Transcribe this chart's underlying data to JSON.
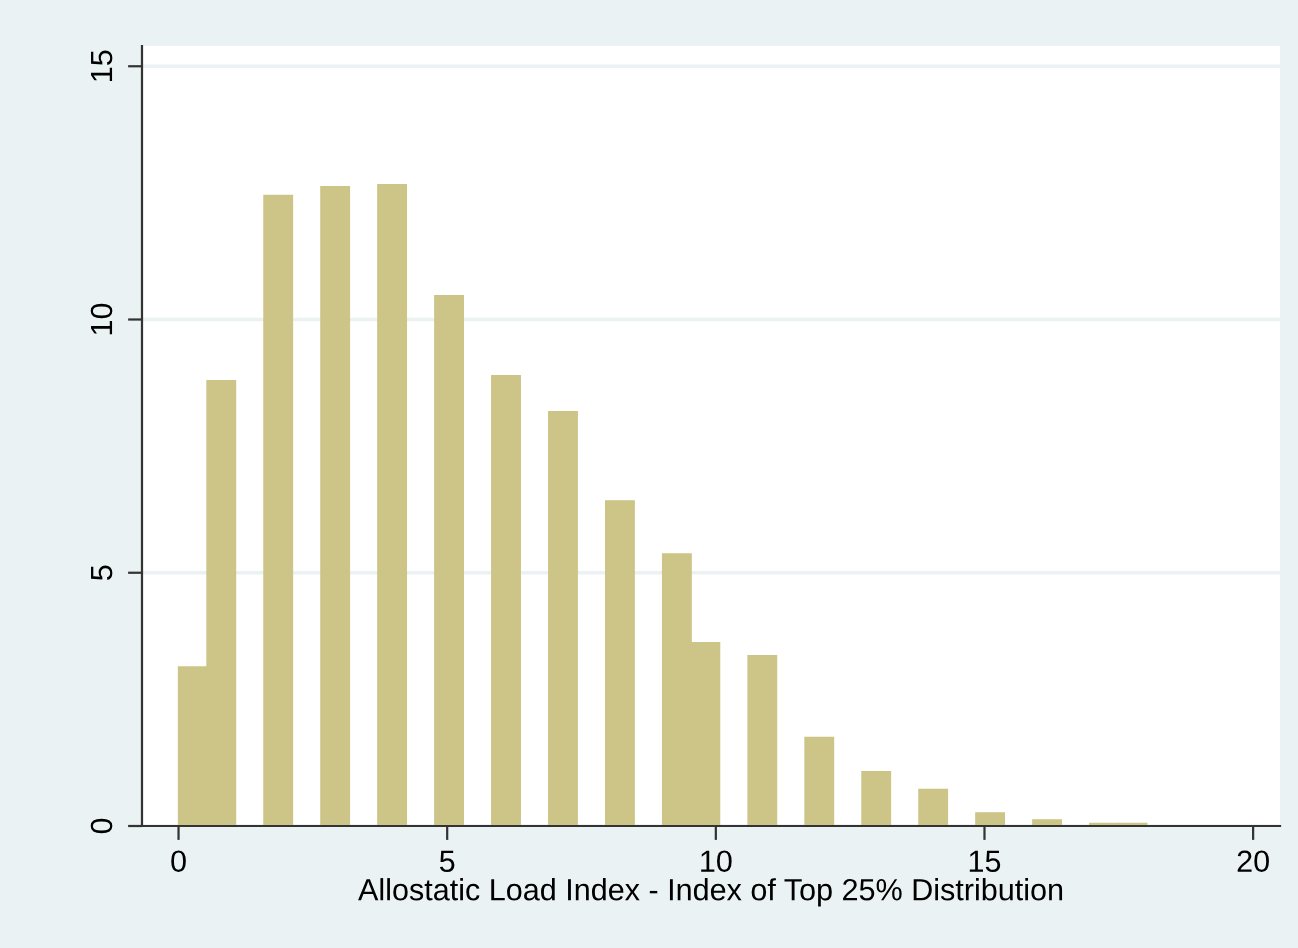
{
  "chart_data": {
    "type": "histogram",
    "xlabel": "Allostatic Load Index - Index of Top 25% Distribution",
    "bins": [
      0,
      0.53,
      1.06,
      1.59,
      2.12,
      2.65,
      3.18,
      3.71,
      4.24,
      4.77,
      5.3,
      5.83,
      6.36,
      6.89,
      7.42,
      7.95,
      8.48,
      9.01,
      9.54,
      10.07,
      10.6,
      11.13,
      11.66,
      12.19,
      12.72,
      13.25,
      13.78,
      14.31,
      14.84,
      15.37,
      15.9,
      16.43,
      16.96,
      17.49,
      18.02
    ],
    "values": [
      3.14,
      8.79,
      0,
      12.45,
      0,
      12.62,
      0,
      12.66,
      0,
      10.47,
      0,
      8.89,
      0,
      8.18,
      0,
      6.42,
      0,
      5.37,
      3.62,
      0,
      3.36,
      0,
      1.75,
      0,
      1.07,
      0,
      0.72,
      0,
      0.26,
      0,
      0.12,
      0,
      0.05,
      0.05
    ],
    "color": "#cdc487",
    "xlim": [
      -0.68,
      20.5
    ],
    "ylim": [
      0,
      15.4
    ],
    "xticks": [
      0,
      5,
      10,
      15,
      20
    ],
    "yticks": [
      0,
      5,
      10,
      15
    ],
    "grid": "y"
  }
}
